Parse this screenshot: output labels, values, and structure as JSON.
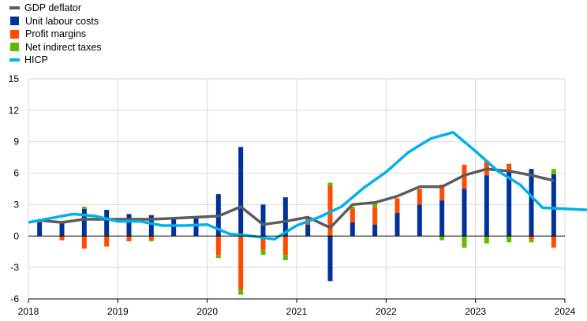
{
  "chart_data": {
    "type": "bar",
    "title": "",
    "xlabel": "",
    "ylabel": "",
    "ylim": [
      -6,
      15
    ],
    "yticks": [
      -6,
      -3,
      0,
      3,
      6,
      9,
      12,
      15
    ],
    "xticks": [
      "2018",
      "2019",
      "2020",
      "2021",
      "2022",
      "2023",
      "2024"
    ],
    "grid": true,
    "legend_position": "top-left",
    "quarters": [
      "2018Q1",
      "2018Q2",
      "2018Q3",
      "2018Q4",
      "2019Q1",
      "2019Q2",
      "2019Q3",
      "2019Q4",
      "2020Q1",
      "2020Q2",
      "2020Q3",
      "2020Q4",
      "2021Q1",
      "2021Q2",
      "2021Q3",
      "2021Q4",
      "2022Q1",
      "2022Q2",
      "2022Q3",
      "2022Q4",
      "2023Q1",
      "2023Q2",
      "2023Q3",
      "2023Q4"
    ],
    "bar_series": [
      {
        "name": "Unit labour costs",
        "color": "#003299",
        "values": [
          1.3,
          1.3,
          2.6,
          2.5,
          2.1,
          2.0,
          1.6,
          1.7,
          4.0,
          8.5,
          3.0,
          3.7,
          1.1,
          -4.3,
          1.3,
          1.1,
          2.2,
          3.0,
          3.4,
          4.5,
          5.8,
          6.3,
          6.4,
          5.9
        ]
      },
      {
        "name": "Profit margins",
        "color": "#ff4b00",
        "values": [
          0.1,
          -0.4,
          -1.2,
          -1.0,
          -0.5,
          -0.4,
          0.0,
          0.2,
          -1.8,
          -5.1,
          -1.3,
          -1.8,
          0.7,
          4.8,
          1.3,
          1.6,
          1.4,
          1.5,
          1.5,
          2.3,
          1.4,
          0.6,
          -0.3,
          -1.1
        ]
      },
      {
        "name": "Net indirect taxes",
        "color": "#65b800",
        "values": [
          0.1,
          0.0,
          0.2,
          0.0,
          0.0,
          -0.1,
          0.0,
          0.0,
          -0.3,
          -0.5,
          -0.5,
          -0.5,
          0.0,
          0.3,
          0.2,
          0.4,
          0.0,
          0.0,
          -0.4,
          -1.1,
          -0.7,
          -0.6,
          -0.3,
          0.5
        ]
      }
    ],
    "line_series": [
      {
        "name": "GDP deflator",
        "color": "#5c5c5c",
        "x": [
          0,
          1,
          2,
          3,
          4,
          5,
          6,
          7,
          8,
          9,
          10,
          11,
          12,
          13,
          14,
          15,
          16,
          17,
          18,
          19,
          20,
          21,
          22,
          23
        ],
        "values": [
          1.5,
          1.3,
          1.6,
          1.6,
          1.6,
          1.6,
          1.7,
          1.8,
          1.9,
          2.8,
          1.1,
          1.4,
          1.8,
          0.8,
          3.0,
          3.2,
          3.8,
          4.7,
          4.7,
          5.8,
          6.4,
          6.2,
          5.8,
          5.3
        ]
      },
      {
        "name": "HICP",
        "color": "#00b1ea",
        "x": [
          -0.5,
          0.5,
          1.5,
          2.5,
          3.5,
          4.5,
          5.5,
          6.5,
          7.5,
          8.5,
          9.5,
          10.5,
          11.5,
          12.5,
          13.5,
          14.5,
          15.5,
          16.5,
          17.5,
          18.5,
          19.5,
          20.5,
          21.5,
          22.5,
          23.5,
          24.5
        ],
        "values": [
          1.3,
          1.7,
          2.1,
          1.9,
          1.4,
          1.4,
          1.0,
          1.0,
          1.1,
          0.2,
          0.0,
          -0.3,
          1.0,
          1.8,
          2.8,
          4.6,
          6.1,
          8.0,
          9.3,
          9.9,
          8.1,
          6.2,
          4.9,
          2.7,
          2.6,
          2.5
        ]
      }
    ],
    "legend_order": [
      "GDP deflator",
      "Unit labour costs",
      "Profit margins",
      "Net indirect taxes",
      "HICP"
    ]
  }
}
